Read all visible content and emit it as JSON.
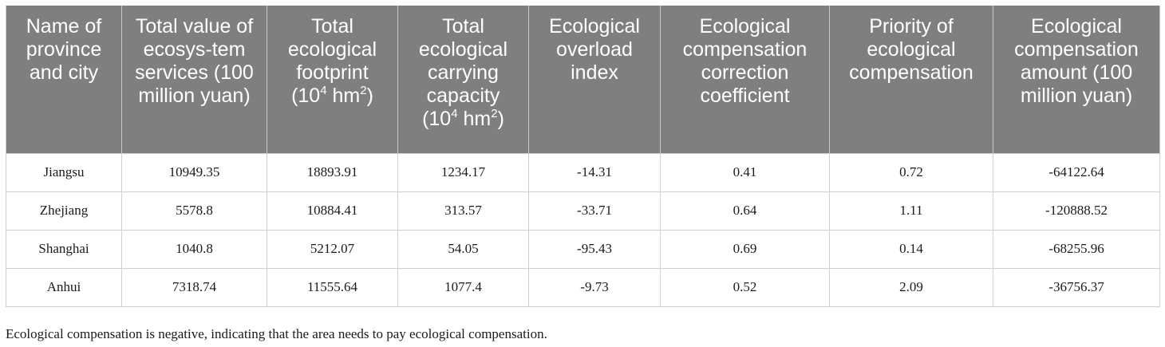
{
  "table": {
    "headers": {
      "name": "Name of province and city",
      "total_value": "Total value of ecosys-tem services (100 million yuan)",
      "footprint_main": "Total ecological footprint",
      "footprint_unit_pre": "(10",
      "footprint_unit_exp": "4",
      "footprint_unit_mid": " hm",
      "footprint_unit_sup": "2",
      "footprint_unit_post": ")",
      "capacity_main": "Total ecological carrying capacity",
      "capacity_unit_pre": "(10",
      "capacity_unit_exp": "4",
      "capacity_unit_mid": " hm",
      "capacity_unit_sup": "2",
      "capacity_unit_post": ")",
      "overload": "Ecological overload index",
      "correction": "Ecological compensation correction coefficient",
      "priority": "Priority of ecological compensation",
      "amount": "Ecological compensation amount (100 million yuan)"
    },
    "rows": [
      [
        "Jiangsu",
        "10949.35",
        "18893.91",
        "1234.17",
        "-14.31",
        "0.41",
        "0.72",
        "-64122.64"
      ],
      [
        "Zhejiang",
        "5578.8",
        "10884.41",
        "313.57",
        "-33.71",
        "0.64",
        "1.11",
        "-120888.52"
      ],
      [
        "Shanghai",
        "1040.8",
        "5212.07",
        "54.05",
        "-95.43",
        "0.69",
        "0.14",
        "-68255.96"
      ],
      [
        "Anhui",
        "7318.74",
        "11555.64",
        "1077.4",
        "-9.73",
        "0.52",
        "2.09",
        "-36756.37"
      ]
    ]
  },
  "footnote": "Ecological compensation is negative, indicating that the area needs to pay ecological compensation."
}
